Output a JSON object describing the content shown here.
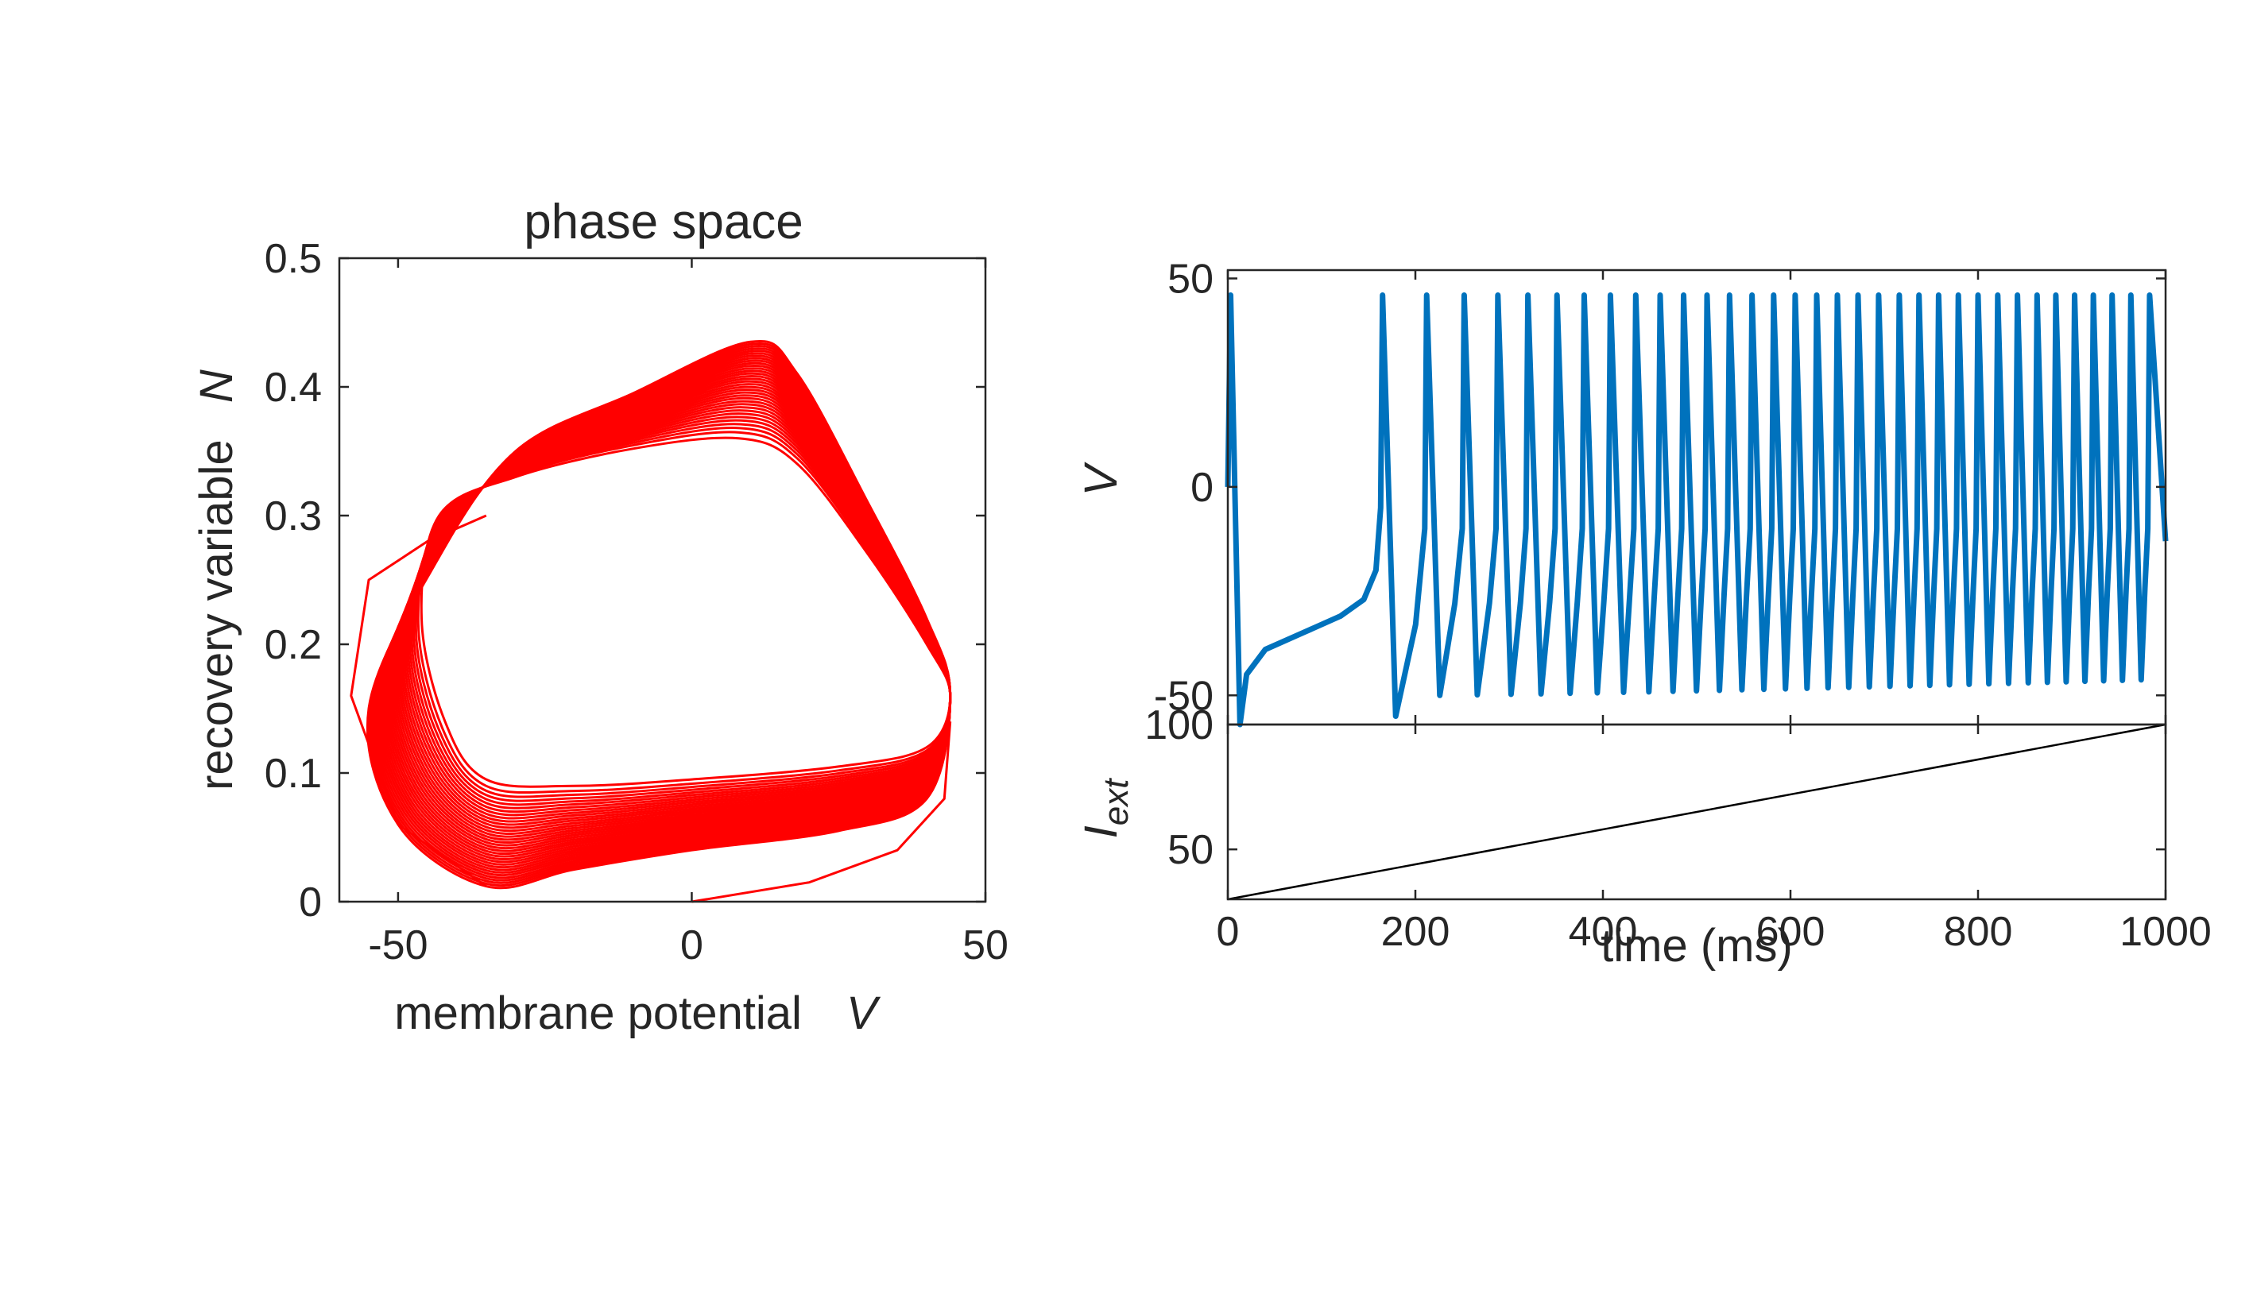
{
  "chart_data": [
    {
      "type": "line",
      "title": "phase space",
      "xlabel": "membrane potential",
      "xlabel_var": "V",
      "ylabel": "recovery variable",
      "ylabel_var": "N",
      "xlim": [
        -60,
        50
      ],
      "ylim": [
        0,
        0.5
      ],
      "xticks": [
        "-50",
        "0",
        "50"
      ],
      "yticks": [
        "0",
        "0.1",
        "0.2",
        "0.3",
        "0.4",
        "0.5"
      ],
      "xtick_values": [
        -50,
        0,
        50
      ],
      "ytick_values": [
        0,
        0.1,
        0.2,
        0.3,
        0.4,
        0.5
      ],
      "grid": false,
      "color": "#ff0000",
      "series": [
        {
          "description_of_path": "trajectory spiraling outward from (0,0)",
          "x": [
            0,
            15,
            30,
            40,
            44,
            43,
            38,
            28,
            20,
            10,
            0,
            -20,
            -35,
            -45,
            -50,
            -48,
            -40,
            -28,
            -15,
            0,
            10,
            20,
            30,
            38,
            44,
            43,
            35,
            25,
            15,
            5,
            -10,
            -25,
            -40,
            -52,
            -58,
            -52,
            -40,
            -25,
            -10,
            5,
            20,
            35,
            44
          ],
          "y": [
            0,
            0.01,
            0.03,
            0.06,
            0.1,
            0.16,
            0.22,
            0.29,
            0.34,
            0.36,
            0.355,
            0.335,
            0.31,
            0.28,
            0.24,
            0.19,
            0.16,
            0.145,
            0.14,
            0.14,
            0.145,
            0.2,
            0.27,
            0.33,
            0.37,
            0.4,
            0.42,
            0.43,
            0.43,
            0.42,
            0.39,
            0.36,
            0.31,
            0.25,
            0.16,
            0.06,
            0.02,
            0.01,
            0.005,
            0.01,
            0.03,
            0.08,
            0.14
          ]
        }
      ]
    },
    {
      "type": "line",
      "ylabel": "V",
      "xlim": [
        0,
        1000
      ],
      "ylim": [
        -57,
        52
      ],
      "yticks": [
        "50",
        "0",
        "-50"
      ],
      "ytick_values": [
        50,
        0,
        -50
      ],
      "grid": false,
      "color": "#0072bd",
      "spike_times_ms": [
        3,
        165,
        212,
        252,
        288,
        320,
        351,
        380,
        408,
        435,
        461,
        486,
        511,
        535,
        559,
        582,
        605,
        628,
        650,
        672,
        694,
        716,
        737,
        758,
        779,
        800,
        821,
        842,
        863,
        883,
        903,
        923,
        943,
        963,
        983
      ],
      "peak": 46,
      "trough_first": -57,
      "trough_later": -50,
      "end_value": -13
    },
    {
      "type": "line",
      "xlabel": "time (ms)",
      "ylabel": "I",
      "ylabel_sub": "ext",
      "xlim": [
        0,
        1000
      ],
      "ylim": [
        30,
        100
      ],
      "xticks": [
        "0",
        "200",
        "400",
        "600",
        "800",
        "1000"
      ],
      "xtick_values": [
        0,
        200,
        400,
        600,
        800,
        1000
      ],
      "yticks": [
        "100",
        "50"
      ],
      "ytick_values": [
        100,
        50
      ],
      "grid": false,
      "color": "#000000",
      "x": [
        0,
        1000
      ],
      "y": [
        30,
        100
      ]
    }
  ]
}
